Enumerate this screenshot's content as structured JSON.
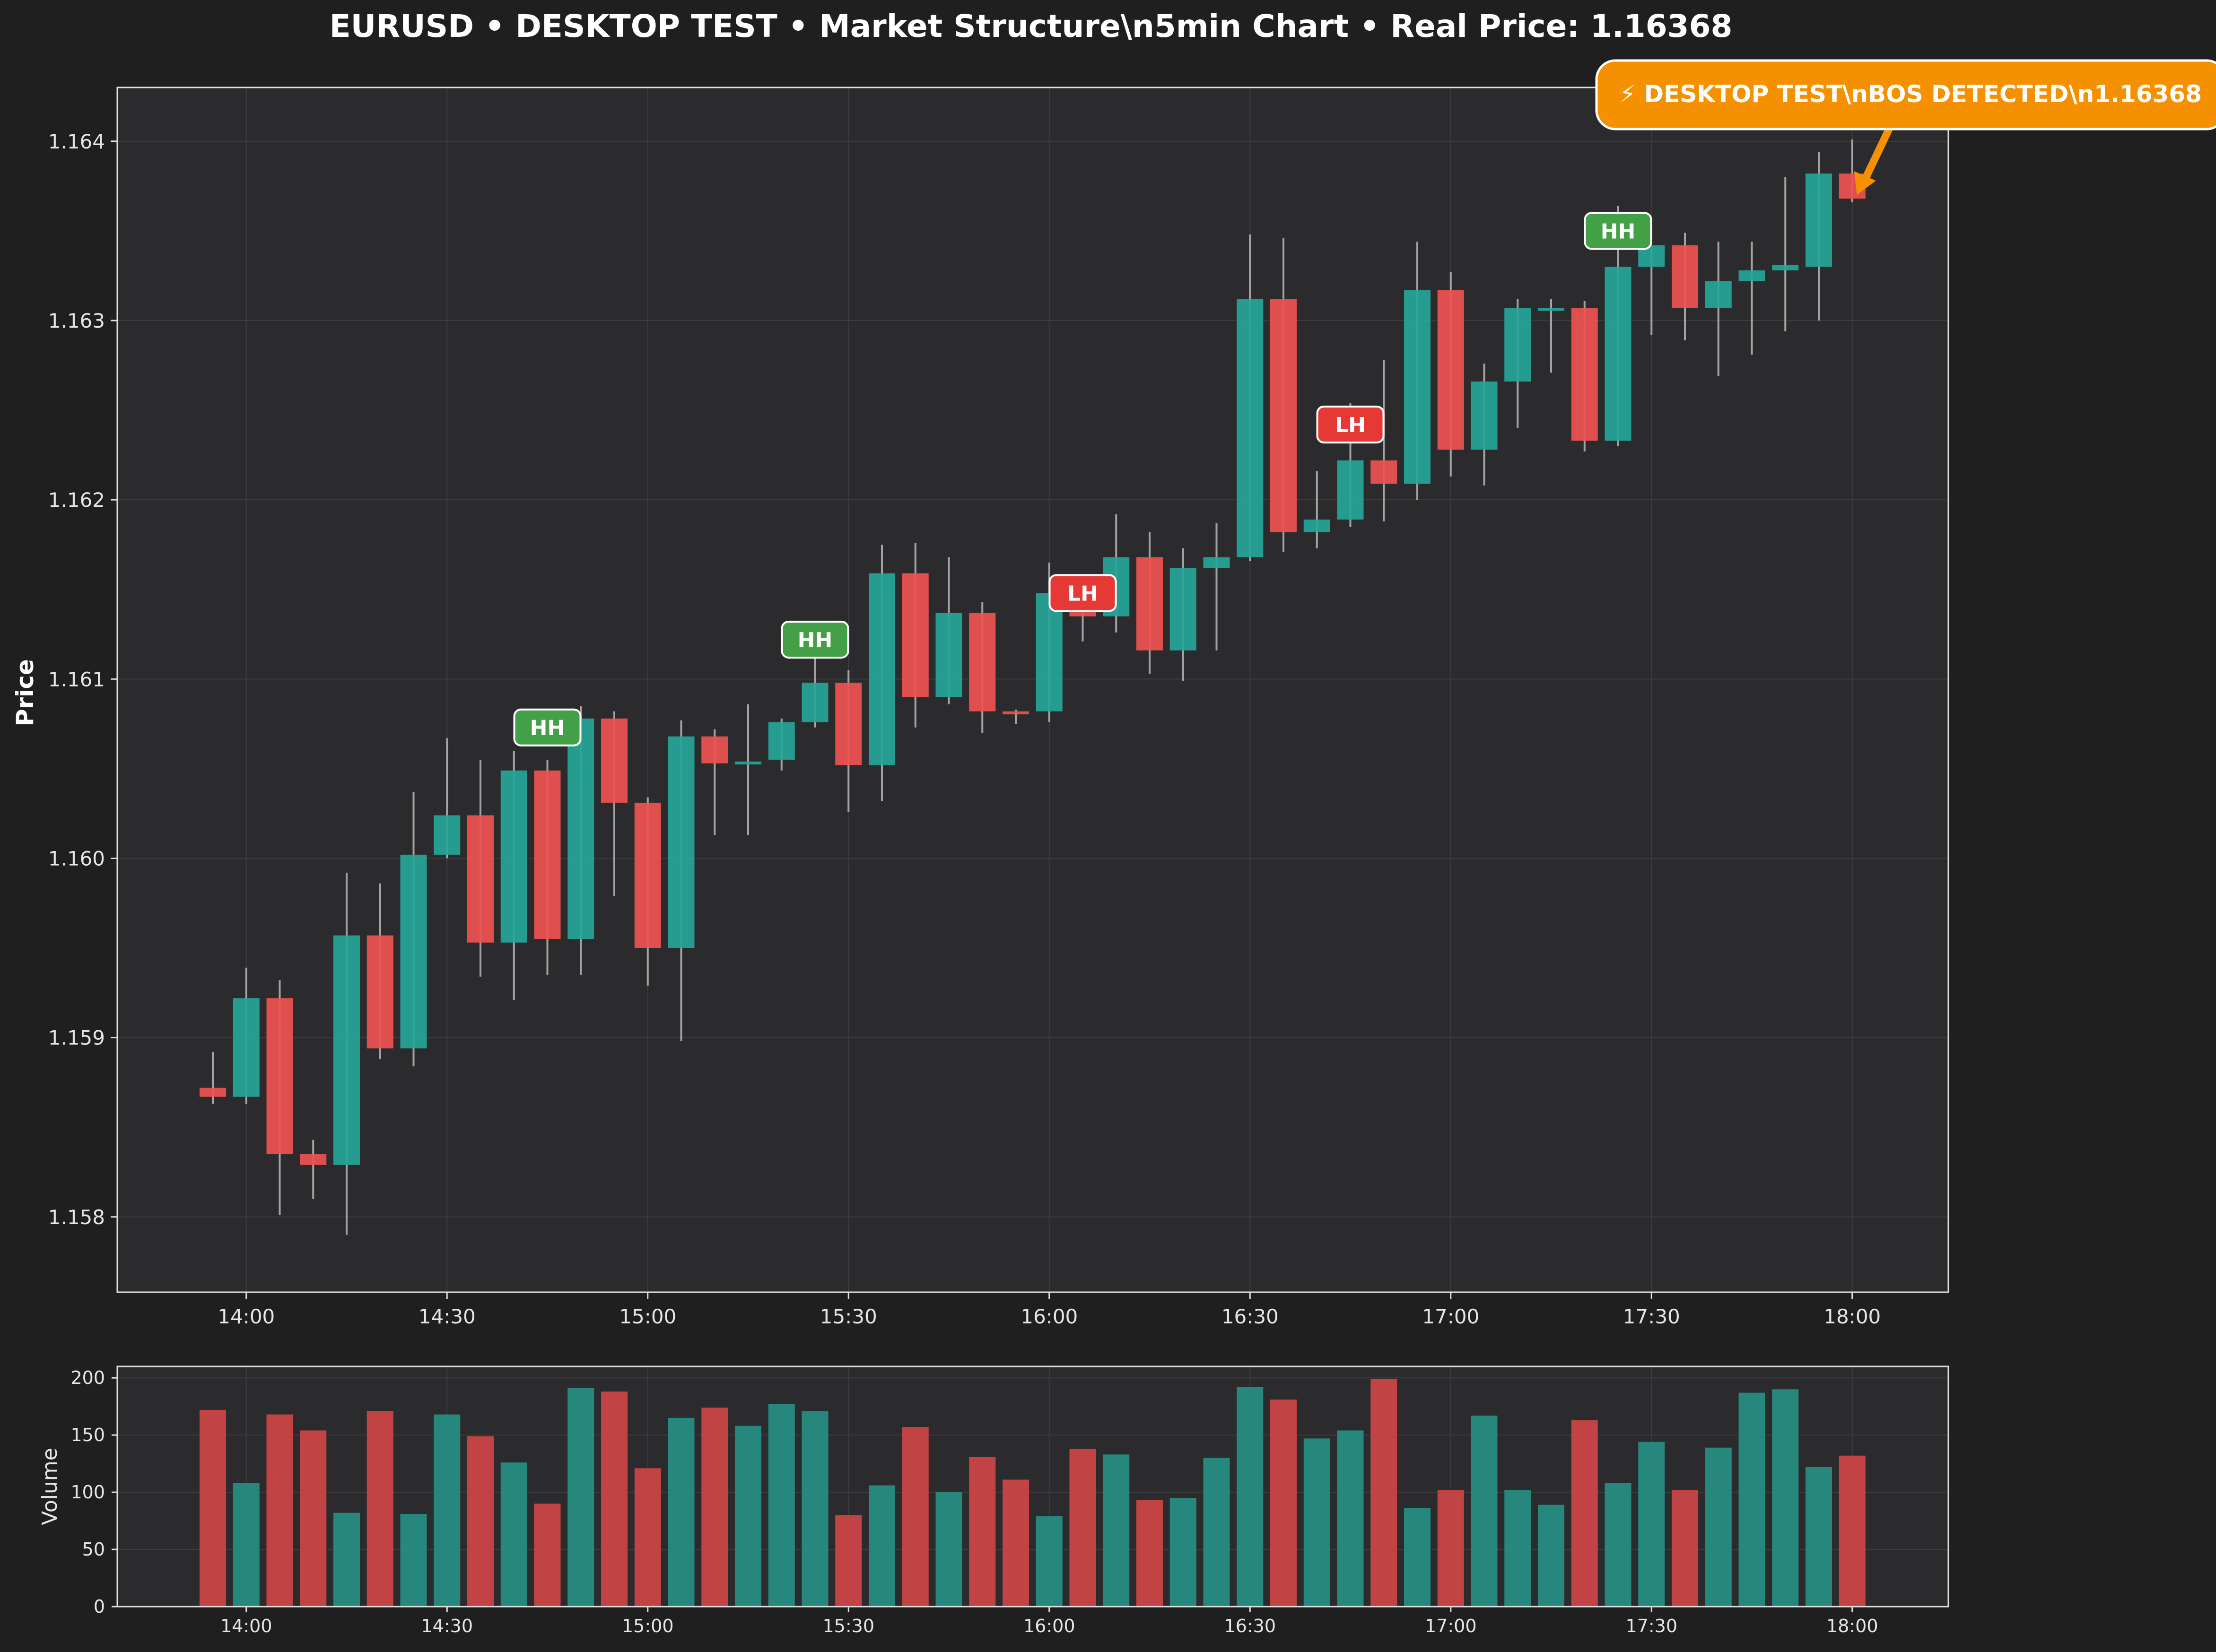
{
  "chart_data": {
    "type": "candlestick",
    "title": "EURUSD • DESKTOP TEST • Market Structure\\n5min Chart • Real Price: 1.16368",
    "ylabel": "Price",
    "volume_label": "Volume",
    "ylim": [
      1.15758,
      1.1643
    ],
    "volume_ylim": [
      0,
      210
    ],
    "y_ticks": [
      "1.158",
      "1.159",
      "1.160",
      "1.161",
      "1.162",
      "1.163",
      "1.164"
    ],
    "volume_ticks": [
      "0",
      "50",
      "100",
      "150",
      "200"
    ],
    "x_ticks": [
      {
        "label": "14:00",
        "index": 1
      },
      {
        "label": "14:30",
        "index": 7
      },
      {
        "label": "15:00",
        "index": 13
      },
      {
        "label": "15:30",
        "index": 19
      },
      {
        "label": "16:00",
        "index": 25
      },
      {
        "label": "16:30",
        "index": 31
      },
      {
        "label": "17:00",
        "index": 37
      },
      {
        "label": "17:30",
        "index": 43
      },
      {
        "label": "18:00",
        "index": 49
      }
    ],
    "grid": true,
    "colors": {
      "bull": "#26a69a",
      "bear": "#ef5350",
      "bull_volume": "#26877d",
      "bear_volume": "#c24343",
      "wick": "#b8b8b8",
      "panel": "#2b2b2d",
      "background": "#1f1f1f",
      "hh_marker": "#43a047",
      "lh_marker": "#e53935",
      "callout": "#f59100"
    },
    "candles": [
      {
        "o": 1.15872,
        "h": 1.15892,
        "l": 1.15863,
        "c": 1.15867,
        "v": 172
      },
      {
        "o": 1.15867,
        "h": 1.15939,
        "l": 1.15863,
        "c": 1.15922,
        "v": 108
      },
      {
        "o": 1.15922,
        "h": 1.15932,
        "l": 1.15801,
        "c": 1.15835,
        "v": 168
      },
      {
        "o": 1.15835,
        "h": 1.15843,
        "l": 1.1581,
        "c": 1.15829,
        "v": 154
      },
      {
        "o": 1.15829,
        "h": 1.15992,
        "l": 1.1579,
        "c": 1.15957,
        "v": 82
      },
      {
        "o": 1.15957,
        "h": 1.15986,
        "l": 1.15888,
        "c": 1.15894,
        "v": 171
      },
      {
        "o": 1.15894,
        "h": 1.16037,
        "l": 1.15884,
        "c": 1.16002,
        "v": 81
      },
      {
        "o": 1.16002,
        "h": 1.16067,
        "l": 1.16,
        "c": 1.16024,
        "v": 168
      },
      {
        "o": 1.16024,
        "h": 1.16055,
        "l": 1.15934,
        "c": 1.15953,
        "v": 149
      },
      {
        "o": 1.15953,
        "h": 1.1606,
        "l": 1.15921,
        "c": 1.16049,
        "v": 126
      },
      {
        "o": 1.16049,
        "h": 1.16055,
        "l": 1.15935,
        "c": 1.15955,
        "v": 90
      },
      {
        "o": 1.15955,
        "h": 1.16085,
        "l": 1.15935,
        "c": 1.16078,
        "v": 191
      },
      {
        "o": 1.16078,
        "h": 1.16082,
        "l": 1.15979,
        "c": 1.16031,
        "v": 188
      },
      {
        "o": 1.16031,
        "h": 1.16034,
        "l": 1.15929,
        "c": 1.1595,
        "v": 121
      },
      {
        "o": 1.1595,
        "h": 1.16077,
        "l": 1.15898,
        "c": 1.16068,
        "v": 165
      },
      {
        "o": 1.16068,
        "h": 1.16072,
        "l": 1.16013,
        "c": 1.16053,
        "v": 174
      },
      {
        "o": 1.16053,
        "h": 1.16086,
        "l": 1.16013,
        "c": 1.16054,
        "v": 158
      },
      {
        "o": 1.16055,
        "h": 1.16078,
        "l": 1.16049,
        "c": 1.16076,
        "v": 177
      },
      {
        "o": 1.16076,
        "h": 1.16132,
        "l": 1.16073,
        "c": 1.16098,
        "v": 171
      },
      {
        "o": 1.16098,
        "h": 1.16105,
        "l": 1.16026,
        "c": 1.16052,
        "v": 80
      },
      {
        "o": 1.16052,
        "h": 1.16175,
        "l": 1.16032,
        "c": 1.16159,
        "v": 106
      },
      {
        "o": 1.16159,
        "h": 1.16176,
        "l": 1.16073,
        "c": 1.1609,
        "v": 157
      },
      {
        "o": 1.1609,
        "h": 1.16168,
        "l": 1.16086,
        "c": 1.16137,
        "v": 100
      },
      {
        "o": 1.16137,
        "h": 1.16143,
        "l": 1.1607,
        "c": 1.16082,
        "v": 131
      },
      {
        "o": 1.16082,
        "h": 1.16083,
        "l": 1.16075,
        "c": 1.16081,
        "v": 111
      },
      {
        "o": 1.16082,
        "h": 1.16165,
        "l": 1.16076,
        "c": 1.16148,
        "v": 79
      },
      {
        "o": 1.16148,
        "h": 1.1615,
        "l": 1.16121,
        "c": 1.16135,
        "v": 138
      },
      {
        "o": 1.16135,
        "h": 1.16192,
        "l": 1.16126,
        "c": 1.16168,
        "v": 133
      },
      {
        "o": 1.16168,
        "h": 1.16182,
        "l": 1.16103,
        "c": 1.16116,
        "v": 93
      },
      {
        "o": 1.16116,
        "h": 1.16173,
        "l": 1.16099,
        "c": 1.16162,
        "v": 95
      },
      {
        "o": 1.16162,
        "h": 1.16187,
        "l": 1.16116,
        "c": 1.16168,
        "v": 130
      },
      {
        "o": 1.16168,
        "h": 1.16348,
        "l": 1.16166,
        "c": 1.16312,
        "v": 192
      },
      {
        "o": 1.16312,
        "h": 1.16346,
        "l": 1.16171,
        "c": 1.16182,
        "v": 181
      },
      {
        "o": 1.16182,
        "h": 1.16216,
        "l": 1.16173,
        "c": 1.16189,
        "v": 147
      },
      {
        "o": 1.16189,
        "h": 1.16254,
        "l": 1.16185,
        "c": 1.16222,
        "v": 154
      },
      {
        "o": 1.16222,
        "h": 1.16278,
        "l": 1.16188,
        "c": 1.16209,
        "v": 199
      },
      {
        "o": 1.16209,
        "h": 1.16344,
        "l": 1.162,
        "c": 1.16317,
        "v": 86
      },
      {
        "o": 1.16317,
        "h": 1.16327,
        "l": 1.16213,
        "c": 1.16228,
        "v": 102
      },
      {
        "o": 1.16228,
        "h": 1.16276,
        "l": 1.16208,
        "c": 1.16266,
        "v": 167
      },
      {
        "o": 1.16266,
        "h": 1.16312,
        "l": 1.1624,
        "c": 1.16307,
        "v": 102
      },
      {
        "o": 1.16306,
        "h": 1.16312,
        "l": 1.16271,
        "c": 1.16307,
        "v": 89
      },
      {
        "o": 1.16307,
        "h": 1.16311,
        "l": 1.16227,
        "c": 1.16233,
        "v": 163
      },
      {
        "o": 1.16233,
        "h": 1.16364,
        "l": 1.1623,
        "c": 1.1633,
        "v": 108
      },
      {
        "o": 1.1633,
        "h": 1.16342,
        "l": 1.16292,
        "c": 1.16342,
        "v": 144
      },
      {
        "o": 1.16342,
        "h": 1.16349,
        "l": 1.16289,
        "c": 1.16307,
        "v": 102
      },
      {
        "o": 1.16307,
        "h": 1.16344,
        "l": 1.16269,
        "c": 1.16322,
        "v": 139
      },
      {
        "o": 1.16322,
        "h": 1.16344,
        "l": 1.16281,
        "c": 1.16328,
        "v": 187
      },
      {
        "o": 1.16328,
        "h": 1.1638,
        "l": 1.16294,
        "c": 1.16331,
        "v": 190
      },
      {
        "o": 1.1633,
        "h": 1.16394,
        "l": 1.163,
        "c": 1.16382,
        "v": 122
      },
      {
        "o": 1.16382,
        "h": 1.16401,
        "l": 1.16366,
        "c": 1.16368,
        "v": 132
      }
    ],
    "markers": [
      {
        "label": "HH",
        "type": "HH",
        "index": 10,
        "price": 1.16073
      },
      {
        "label": "HH",
        "type": "HH",
        "index": 18,
        "price": 1.16122
      },
      {
        "label": "LH",
        "type": "LH",
        "index": 26,
        "price": 1.16148
      },
      {
        "label": "LH",
        "type": "LH",
        "index": 34,
        "price": 1.16242
      },
      {
        "label": "HH",
        "type": "HH",
        "index": 42,
        "price": 1.1635
      }
    ],
    "callout": {
      "text": "⚡ DESKTOP TEST\\nBOS DETECTED\\n1.16368",
      "target_index": 49,
      "target_price": 1.16368
    }
  }
}
